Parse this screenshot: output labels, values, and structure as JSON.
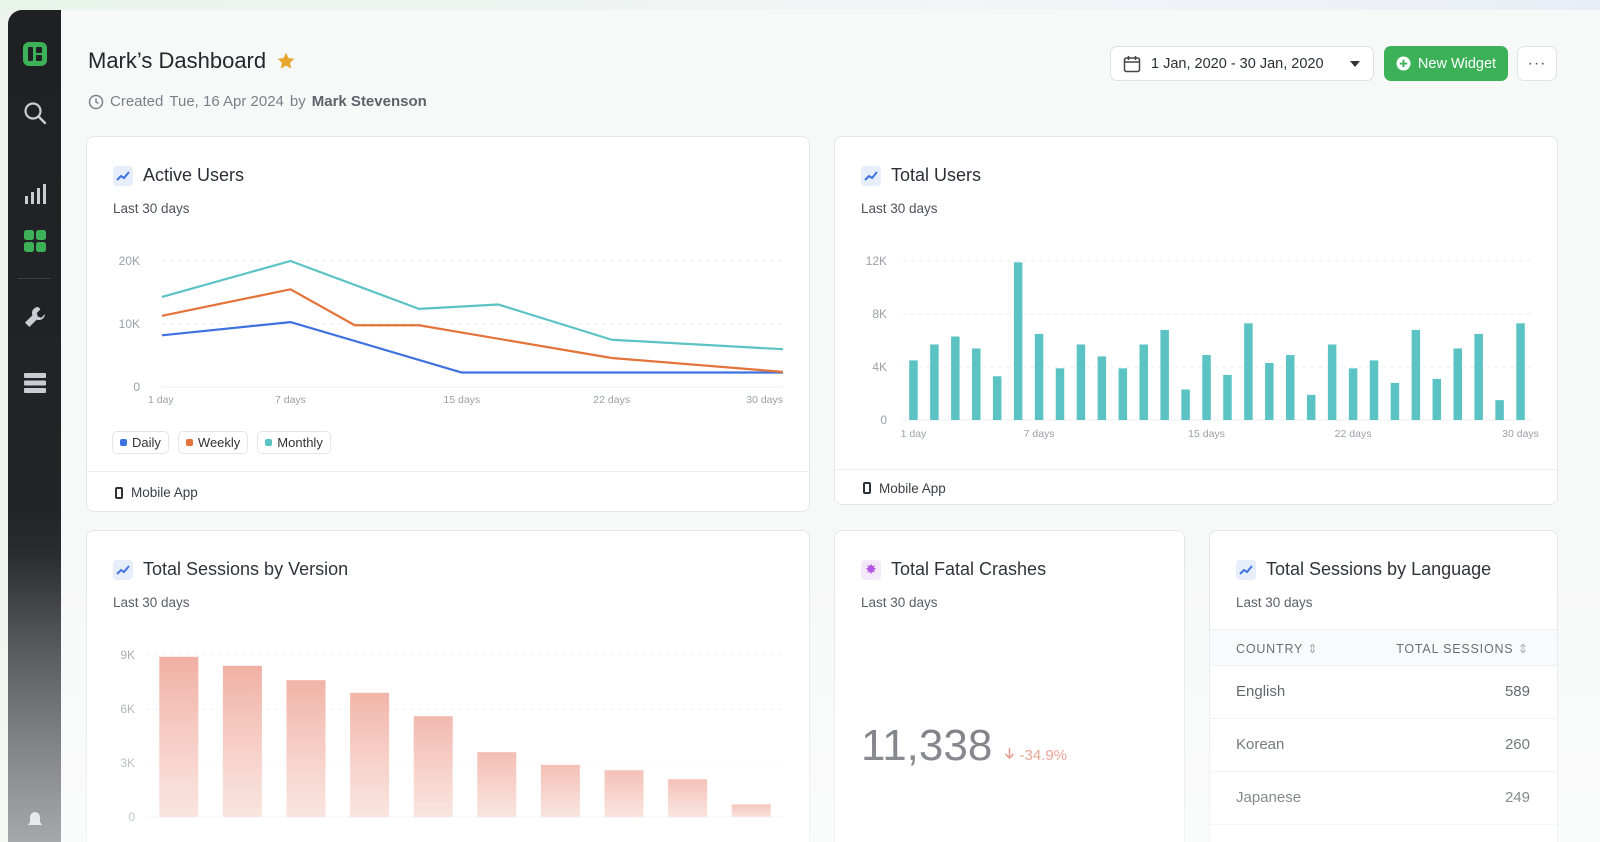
{
  "header": {
    "title": "Mark’s Dashboard",
    "created_prefix": "Created",
    "created_date": "Tue, 16 Apr 2024",
    "created_by_word": "by",
    "author": "Mark Stevenson",
    "date_range": "1 Jan, 2020 - 30 Jan, 2020",
    "new_widget_label": "New Widget",
    "more_label": "···"
  },
  "sidebar": {
    "icons": [
      "logo-icon",
      "search-icon",
      "bar-chart-icon",
      "grid-icon",
      "wrench-icon",
      "database-icon",
      "bell-icon"
    ],
    "active_color": "#3db158"
  },
  "colors": {
    "accent": "#3db158",
    "daily": "#3f72e0",
    "weekly": "#e4733a",
    "monthly": "#5cc3c4",
    "bars_teal": "#5bc3c3",
    "bars_salmon": "#eea597"
  },
  "active_users": {
    "title": "Active Users",
    "subtitle": "Last 30 days",
    "footer": "Mobile App",
    "chart_data": {
      "type": "line",
      "x": [
        "1 day",
        "7 days",
        "15 days",
        "22 days",
        "30 days"
      ],
      "x_ticks": [
        "1 day",
        "7 days",
        "15 days",
        "22 days",
        "30 days"
      ],
      "y_ticks": [
        "0",
        "10K",
        "20K"
      ],
      "ylim": [
        0,
        20000
      ],
      "grid": true,
      "series": [
        {
          "name": "Daily",
          "points": [
            [
              1,
              8200
            ],
            [
              7,
              10300
            ],
            [
              15,
              2300
            ],
            [
              22,
              2300
            ],
            [
              30,
              2300
            ]
          ]
        },
        {
          "name": "Weekly",
          "points": [
            [
              1,
              11300
            ],
            [
              7,
              15500
            ],
            [
              10,
              9800
            ],
            [
              13,
              9800
            ],
            [
              22,
              4600
            ],
            [
              30,
              2400
            ]
          ]
        },
        {
          "name": "Monthly",
          "points": [
            [
              1,
              14300
            ],
            [
              7,
              20000
            ],
            [
              13,
              12400
            ],
            [
              16.7,
              13100
            ],
            [
              22,
              7500
            ],
            [
              30,
              6000
            ]
          ]
        }
      ]
    },
    "legend": [
      "Daily",
      "Weekly",
      "Monthly"
    ]
  },
  "total_users": {
    "title": "Total Users",
    "subtitle": "Last 30 days",
    "footer": "Mobile App",
    "chart_data": {
      "type": "bar",
      "x_ticks": [
        "1 day",
        "7 days",
        "15 days",
        "22 days",
        "30 days"
      ],
      "y_ticks": [
        "0",
        "4K",
        "8K",
        "12K"
      ],
      "ylim": [
        0,
        12000
      ],
      "grid": true,
      "values": [
        4500,
        5700,
        6300,
        5400,
        3300,
        11900,
        6500,
        3900,
        5700,
        4800,
        3900,
        5700,
        6800,
        2300,
        4900,
        3400,
        7300,
        4300,
        4900,
        1900,
        5700,
        3900,
        4500,
        2800,
        6800,
        3100,
        5400,
        6500,
        1500,
        7300
      ]
    }
  },
  "sessions_version": {
    "title": "Total Sessions by Version",
    "subtitle": "Last 30 days",
    "chart_data": {
      "type": "bar",
      "y_ticks": [
        "0",
        "3K",
        "6K",
        "9K"
      ],
      "ylim": [
        0,
        9000
      ],
      "grid": true,
      "values": [
        8900,
        8400,
        7600,
        6900,
        5600,
        3600,
        2900,
        2600,
        2100,
        700
      ]
    }
  },
  "fatal_crashes": {
    "title": "Total Fatal Crashes",
    "subtitle": "Last 30 days",
    "value": "11,338",
    "delta": "-34.9%"
  },
  "sessions_language": {
    "title": "Total Sessions by Language",
    "subtitle": "Last 30 days",
    "columns": [
      "COUNTRY",
      "TOTAL SESSIONS"
    ],
    "rows": [
      {
        "name": "English",
        "value": "589"
      },
      {
        "name": "Korean",
        "value": "260"
      },
      {
        "name": "Japanese",
        "value": "249"
      }
    ]
  }
}
